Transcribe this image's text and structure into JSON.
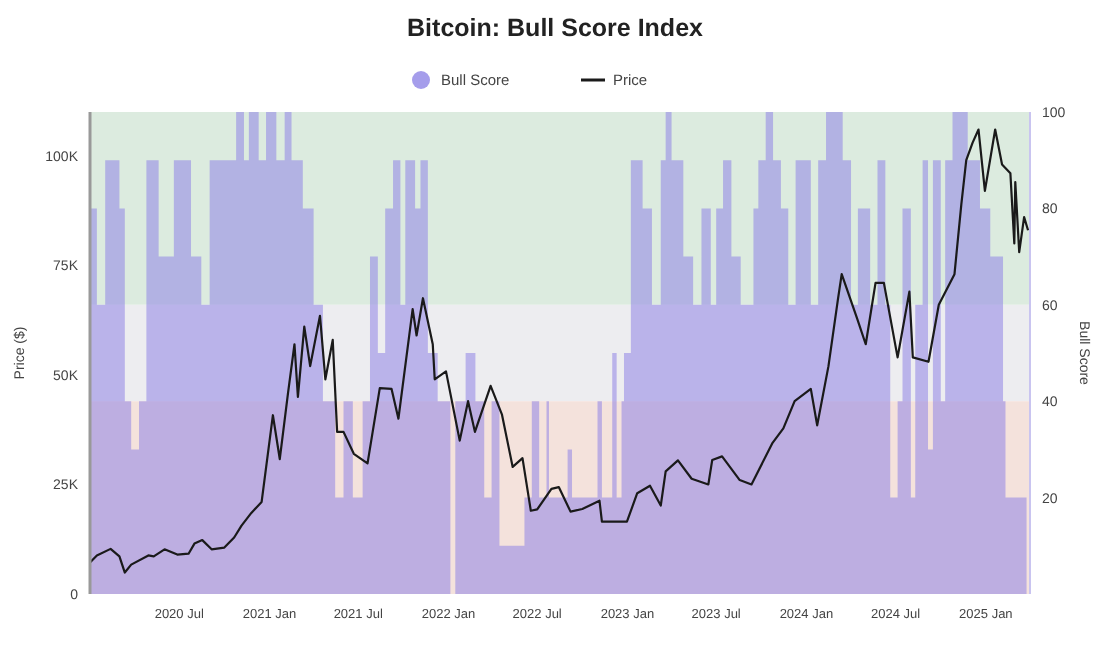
{
  "chart_data": {
    "type": "line",
    "title": "Bitcoin: Bull Score Index",
    "ylabel": "Price ($)",
    "y2label": "Bull Score",
    "legend": "top",
    "xlim": [
      "2020-01-01",
      "2025-04-01"
    ],
    "xticks": [
      {
        "value": "2020-07-01",
        "label": "2020 Jul"
      },
      {
        "value": "2021-01-01",
        "label": "2021 Jan"
      },
      {
        "value": "2021-07-01",
        "label": "2021 Jul"
      },
      {
        "value": "2022-01-01",
        "label": "2022 Jan"
      },
      {
        "value": "2022-07-01",
        "label": "2022 Jul"
      },
      {
        "value": "2023-01-01",
        "label": "2023 Jan"
      },
      {
        "value": "2023-07-01",
        "label": "2023 Jul"
      },
      {
        "value": "2024-01-01",
        "label": "2024 Jan"
      },
      {
        "value": "2024-07-01",
        "label": "2024 Jul"
      },
      {
        "value": "2025-01-01",
        "label": "2025 Jan"
      }
    ],
    "ylim": [
      0,
      110000
    ],
    "yticks": [
      {
        "value": 0,
        "label": "0"
      },
      {
        "value": 25000,
        "label": "25K"
      },
      {
        "value": 50000,
        "label": "50K"
      },
      {
        "value": 75000,
        "label": "75K"
      },
      {
        "value": 100000,
        "label": "100K"
      }
    ],
    "y2lim": [
      0,
      100
    ],
    "y2ticks": [
      20,
      40,
      60,
      80,
      100
    ],
    "bands": [
      {
        "axis": "y2",
        "from": 60,
        "to": 100,
        "color": "#dcebdf"
      },
      {
        "axis": "y2",
        "from": 40,
        "to": 60,
        "color": "#ededf0"
      },
      {
        "axis": "y2",
        "from": 0,
        "to": 40,
        "color": "#f4e2dc"
      }
    ],
    "series": [
      {
        "name": "Bull Score",
        "type": "area",
        "axis": "y2",
        "color": "#8f84e6",
        "x": [
          "2020-01-01",
          "2020-01-15",
          "2020-02-01",
          "2020-03-01",
          "2020-03-12",
          "2020-03-25",
          "2020-04-10",
          "2020-04-25",
          "2020-05-20",
          "2020-06-20",
          "2020-07-25",
          "2020-08-15",
          "2020-09-01",
          "2020-10-25",
          "2020-11-10",
          "2020-11-20",
          "2020-12-10",
          "2020-12-25",
          "2021-01-15",
          "2021-02-01",
          "2021-02-15",
          "2021-03-10",
          "2021-04-01",
          "2021-04-20",
          "2021-05-15",
          "2021-06-01",
          "2021-06-20",
          "2021-07-10",
          "2021-07-25",
          "2021-08-10",
          "2021-08-25",
          "2021-09-10",
          "2021-09-25",
          "2021-10-05",
          "2021-10-25",
          "2021-11-05",
          "2021-11-20",
          "2021-12-10",
          "2022-01-05",
          "2022-01-15",
          "2022-02-05",
          "2022-02-25",
          "2022-03-15",
          "2022-03-30",
          "2022-04-15",
          "2022-06-05",
          "2022-06-20",
          "2022-07-05",
          "2022-07-20",
          "2022-07-25",
          "2022-09-01",
          "2022-09-10",
          "2022-11-01",
          "2022-11-10",
          "2022-12-01",
          "2022-12-10",
          "2022-12-20",
          "2022-12-25",
          "2023-01-08",
          "2023-02-01",
          "2023-02-20",
          "2023-03-10",
          "2023-03-20",
          "2023-04-01",
          "2023-04-25",
          "2023-05-15",
          "2023-06-01",
          "2023-06-20",
          "2023-07-01",
          "2023-07-15",
          "2023-08-01",
          "2023-08-20",
          "2023-09-15",
          "2023-09-25",
          "2023-10-10",
          "2023-10-25",
          "2023-11-10",
          "2023-11-25",
          "2023-12-10",
          "2024-01-10",
          "2024-01-25",
          "2024-02-10",
          "2024-03-15",
          "2024-04-01",
          "2024-04-15",
          "2024-05-10",
          "2024-05-25",
          "2024-06-10",
          "2024-06-20",
          "2024-07-05",
          "2024-07-15",
          "2024-08-01",
          "2024-08-10",
          "2024-08-25",
          "2024-09-05",
          "2024-09-15",
          "2024-10-01",
          "2024-10-10",
          "2024-10-25",
          "2024-11-25",
          "2024-12-20",
          "2025-01-10",
          "2025-02-01",
          "2025-02-05",
          "2025-02-10",
          "2025-03-25"
        ],
        "values": [
          80,
          60,
          90,
          80,
          40,
          30,
          40,
          90,
          70,
          90,
          70,
          60,
          90,
          100,
          90,
          100,
          90,
          100,
          90,
          100,
          90,
          80,
          60,
          40,
          20,
          40,
          20,
          40,
          70,
          50,
          80,
          90,
          60,
          90,
          80,
          90,
          50,
          40,
          0,
          40,
          50,
          40,
          20,
          40,
          10,
          20,
          40,
          20,
          40,
          20,
          30,
          20,
          40,
          20,
          50,
          20,
          40,
          50,
          90,
          80,
          60,
          90,
          100,
          90,
          70,
          60,
          80,
          60,
          80,
          90,
          70,
          60,
          80,
          90,
          100,
          90,
          80,
          60,
          90,
          60,
          90,
          100,
          90,
          60,
          80,
          60,
          90,
          60,
          20,
          40,
          80,
          20,
          60,
          90,
          30,
          90,
          40,
          90,
          100,
          90,
          80,
          70,
          70,
          40,
          20,
          20
        ]
      },
      {
        "name": "Price",
        "color": "#1a1a1a",
        "x": [
          "2020-01-01",
          "2020-01-15",
          "2020-02-12",
          "2020-03-01",
          "2020-03-12",
          "2020-03-25",
          "2020-04-29",
          "2020-05-10",
          "2020-06-01",
          "2020-06-27",
          "2020-07-20",
          "2020-08-01",
          "2020-08-17",
          "2020-09-05",
          "2020-10-01",
          "2020-10-21",
          "2020-11-05",
          "2020-11-25",
          "2020-12-16",
          "2021-01-08",
          "2021-01-22",
          "2021-02-08",
          "2021-02-21",
          "2021-02-28",
          "2021-03-13",
          "2021-03-25",
          "2021-04-14",
          "2021-04-25",
          "2021-05-10",
          "2021-05-19",
          "2021-06-01",
          "2021-06-22",
          "2021-07-20",
          "2021-08-14",
          "2021-09-07",
          "2021-09-21",
          "2021-10-20",
          "2021-10-28",
          "2021-11-10",
          "2021-11-30",
          "2021-12-04",
          "2021-12-27",
          "2022-01-24",
          "2022-02-10",
          "2022-02-24",
          "2022-03-28",
          "2022-04-20",
          "2022-05-12",
          "2022-06-01",
          "2022-06-18",
          "2022-07-01",
          "2022-07-30",
          "2022-08-14",
          "2022-09-07",
          "2022-10-01",
          "2022-11-05",
          "2022-11-10",
          "2022-12-31",
          "2023-01-21",
          "2023-02-16",
          "2023-03-10",
          "2023-03-20",
          "2023-04-14",
          "2023-05-12",
          "2023-06-15",
          "2023-06-23",
          "2023-07-13",
          "2023-08-18",
          "2023-09-11",
          "2023-10-24",
          "2023-11-15",
          "2023-12-08",
          "2024-01-10",
          "2024-01-23",
          "2024-02-15",
          "2024-03-05",
          "2024-03-13",
          "2024-04-13",
          "2024-05-01",
          "2024-05-21",
          "2024-06-07",
          "2024-07-05",
          "2024-07-29",
          "2024-08-05",
          "2024-09-06",
          "2024-09-27",
          "2024-10-29",
          "2024-11-12",
          "2024-11-22",
          "2024-12-05",
          "2024-12-17",
          "2024-12-30",
          "2025-01-20",
          "2025-02-03",
          "2025-02-20",
          "2025-02-28",
          "2025-03-02",
          "2025-03-10",
          "2025-03-20",
          "2025-03-28"
        ],
        "values": [
          7200,
          8800,
          10300,
          8600,
          4900,
          6700,
          8800,
          8600,
          10200,
          9000,
          9200,
          11500,
          12300,
          10200,
          10600,
          12900,
          15600,
          18500,
          21000,
          40800,
          30800,
          46000,
          57000,
          45000,
          61000,
          52000,
          63500,
          49000,
          58000,
          37000,
          37000,
          32000,
          29800,
          47000,
          46800,
          40000,
          65000,
          59000,
          67500,
          57000,
          49000,
          50800,
          35000,
          44000,
          37000,
          47500,
          41000,
          29000,
          31000,
          19000,
          19300,
          24000,
          24400,
          18800,
          19400,
          21300,
          16500,
          16500,
          23000,
          24700,
          20200,
          28000,
          30500,
          26300,
          25000,
          30600,
          31400,
          26000,
          25000,
          34500,
          37800,
          44000,
          46800,
          38500,
          52000,
          67000,
          73000,
          63000,
          57000,
          71000,
          71000,
          54000,
          69000,
          54000,
          53000,
          66000,
          73000,
          89000,
          99000,
          103000,
          106000,
          92000,
          106000,
          98000,
          96000,
          80000,
          94000,
          78000,
          86000,
          83000
        ]
      }
    ]
  }
}
